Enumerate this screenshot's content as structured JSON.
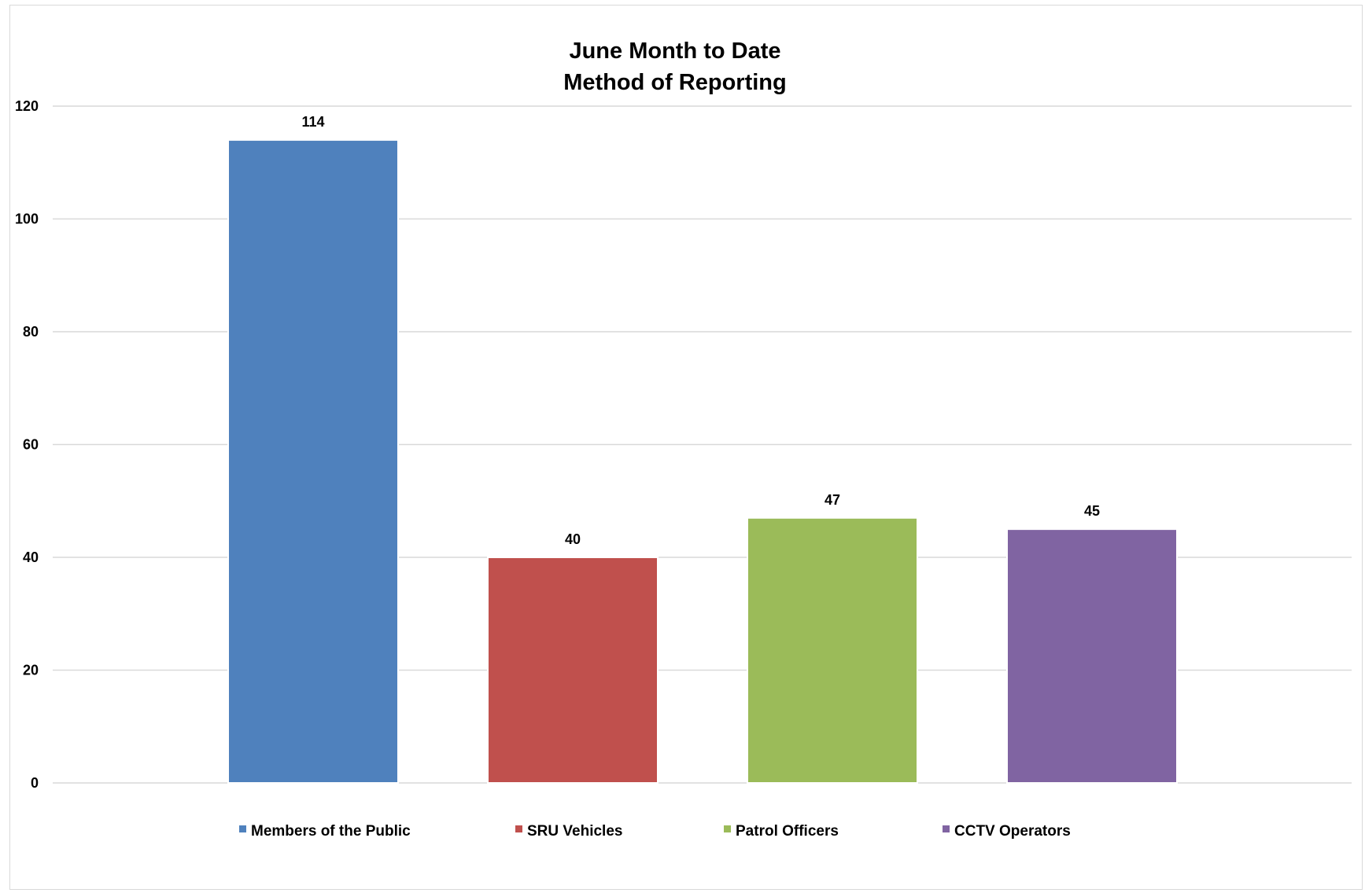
{
  "chart_data": {
    "type": "bar",
    "title_lines": [
      "June Month to Date",
      "Method of Reporting"
    ],
    "categories": [
      "Members of the Public",
      "SRU Vehicles",
      "Patrol Officers",
      "CCTV Operators"
    ],
    "values": [
      114,
      40,
      47,
      45
    ],
    "colors": [
      "#4f81bd",
      "#c0504d",
      "#9bbb59",
      "#8064a2"
    ],
    "ylim": [
      0,
      120
    ],
    "yticks": [
      0,
      20,
      40,
      60,
      80,
      100,
      120
    ],
    "grid": true,
    "data_labels": true,
    "legend_position": "bottom"
  }
}
